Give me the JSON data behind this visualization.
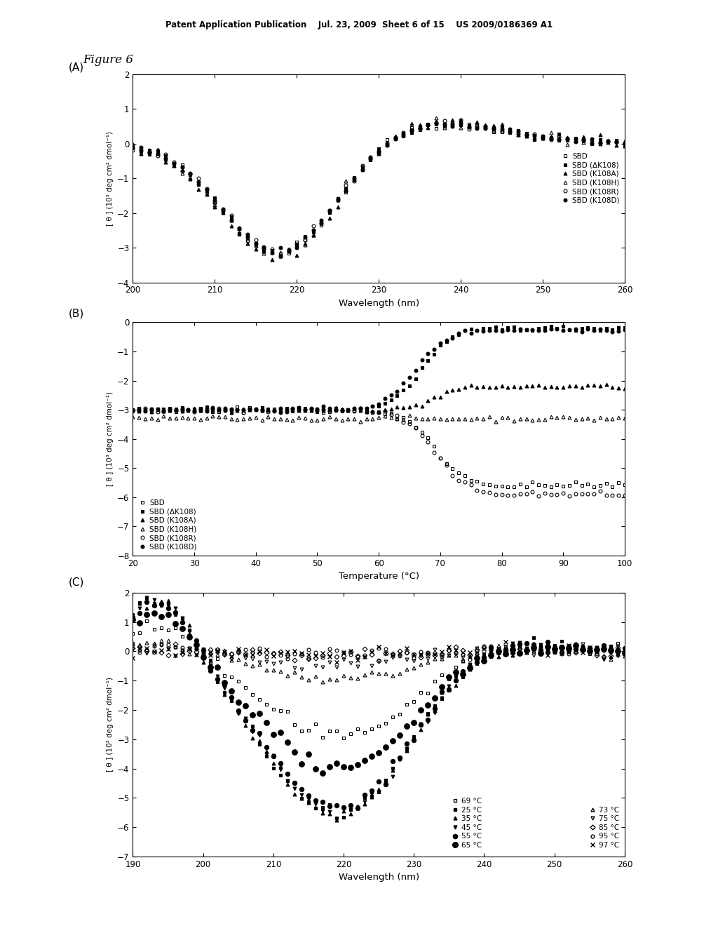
{
  "header_text": "Patent Application Publication    Jul. 23, 2009  Sheet 6 of 15    US 2009/0186369 A1",
  "figure_label": "Figure 6",
  "panel_A": {
    "label": "(A)",
    "xlabel": "Wavelength (nm)",
    "xlim": [
      200,
      260
    ],
    "ylim": [
      -4,
      2
    ],
    "xticks": [
      200,
      210,
      220,
      230,
      240,
      250,
      260
    ],
    "yticks": [
      -4,
      -3,
      -2,
      -1,
      0,
      1,
      2
    ],
    "legend": [
      "SBD",
      "SBD (ΔK108)",
      "SBD (K108A)",
      "SBD (K108H)",
      "SBD (K108R)",
      "SBD (K108D)"
    ]
  },
  "panel_B": {
    "label": "(B)",
    "xlabel": "Temperature (°C)",
    "xlim": [
      20,
      100
    ],
    "ylim": [
      -8,
      0
    ],
    "xticks": [
      20,
      30,
      40,
      50,
      60,
      70,
      80,
      90,
      100
    ],
    "yticks": [
      -8,
      -7,
      -6,
      -5,
      -4,
      -3,
      -2,
      -1,
      0
    ],
    "legend": [
      "SBD",
      "SBD (ΔK108)",
      "SBD (K108A)",
      "SBD (K108H)",
      "SBD (K108R)",
      "SBD (K108D)"
    ]
  },
  "panel_C": {
    "label": "(C)",
    "xlabel": "Wavelength (nm)",
    "xlim": [
      190,
      260
    ],
    "ylim": [
      -7,
      2
    ],
    "xticks": [
      190,
      200,
      210,
      220,
      230,
      240,
      250,
      260
    ],
    "yticks": [
      -7,
      -6,
      -5,
      -4,
      -3,
      -2,
      -1,
      0,
      1,
      2
    ]
  },
  "ylabel": "[ θ ] (10³ deg cm² dmol⁻¹)"
}
